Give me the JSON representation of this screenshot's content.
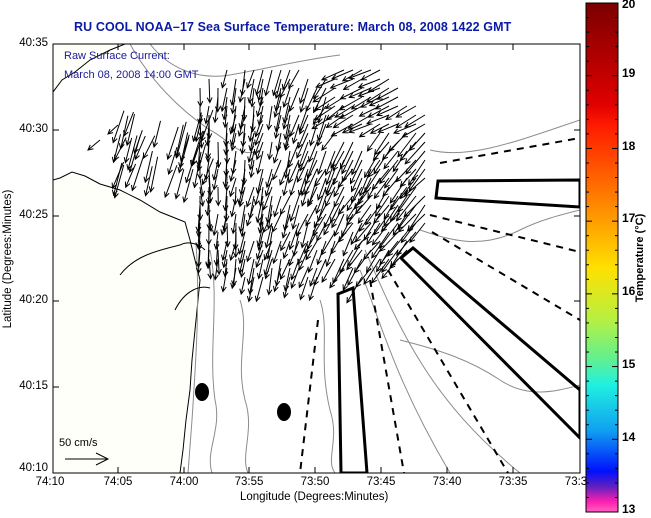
{
  "title": "RU COOL  NOAA–17  Sea Surface Temperature:  March 08, 2008 1422 GMT",
  "overlay": {
    "line1": "Raw Surface Current:",
    "line2": "March 08, 2008 14:00 GMT"
  },
  "scale_arrow_label": "50 cm/s",
  "axes": {
    "xlabel": "Longitude (Degrees:Minutes)",
    "ylabel": "Latitude (Degrees:Minutes)",
    "xticks": [
      "74:10",
      "74:05",
      "74:00",
      "73:55",
      "73:50",
      "73:45",
      "73:40",
      "73:35",
      "73:3"
    ],
    "yticks": [
      "40:35",
      "40:30",
      "40:25",
      "40:20",
      "40:15",
      "40:10"
    ]
  },
  "colorbar": {
    "label": "Temperature (°C)",
    "ticks": [
      "20",
      "19",
      "18",
      "17",
      "16",
      "15",
      "14",
      "13"
    ],
    "range": [
      13,
      20
    ]
  },
  "colors": {
    "title": "#0a1aa8",
    "overlay_text": "#1a1a9a",
    "land": "#fffffa",
    "contour": "#8c8c8c"
  }
}
